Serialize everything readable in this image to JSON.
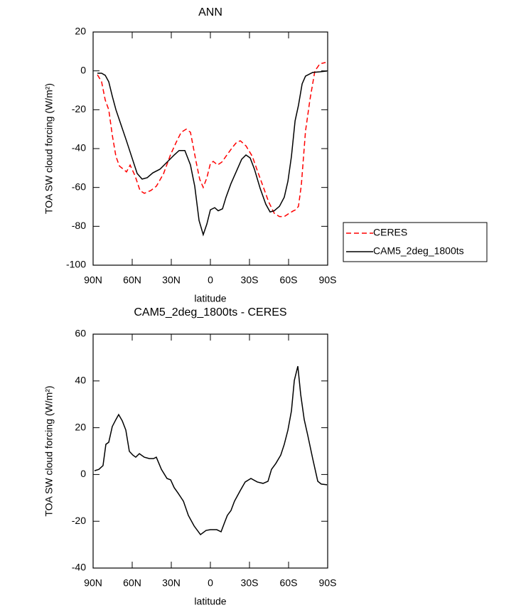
{
  "chart_data": [
    {
      "type": "line",
      "title": "ANN",
      "xlabel": "latitude",
      "ylabel": "TOA SW cloud forcing (W/m²)",
      "xlim": [
        90,
        -90
      ],
      "xticks": [
        {
          "value": 90,
          "label": "90N"
        },
        {
          "value": 60,
          "label": "60N"
        },
        {
          "value": 30,
          "label": "30N"
        },
        0,
        {
          "value": -30,
          "label": "30S"
        },
        {
          "value": -60,
          "label": "60S"
        },
        {
          "value": -90,
          "label": "90S"
        }
      ],
      "ylim": [
        -100,
        20
      ],
      "yticks": [
        -100,
        -80,
        -60,
        -40,
        -20,
        0,
        20
      ],
      "legend": "right",
      "series": [
        {
          "name": "CERES",
          "color": "#ff0000",
          "line_style": "dashed",
          "x": [
            86.7,
            83.5,
            80.7,
            78,
            75.3,
            72.5,
            69.8,
            66,
            64.4,
            61.6,
            57.8,
            54,
            50.7,
            45.8,
            41.5,
            36,
            30.5,
            26.2,
            22.4,
            18.5,
            15.3,
            10.9,
            8.2,
            5.5,
            2.7,
            0,
            -2.2,
            -5.5,
            -8.7,
            -13,
            -17,
            -20.2,
            -23,
            -27.3,
            -32.2,
            -36,
            -40.4,
            -44.7,
            -49,
            -53,
            -56.7,
            -60.5,
            -63.8,
            -65.5,
            -67.6,
            -69.8,
            -73,
            -76.4,
            -80.2,
            -84,
            -88.4
          ],
          "values": [
            -2,
            -5.6,
            -15,
            -20,
            -33,
            -44,
            -49,
            -51,
            -52,
            -48.5,
            -54,
            -61.6,
            -63,
            -61.6,
            -59.4,
            -53,
            -43,
            -36.7,
            -31.6,
            -30,
            -31.6,
            -47,
            -55.8,
            -60,
            -55,
            -47.7,
            -46.6,
            -48.4,
            -47,
            -43,
            -39.3,
            -36.7,
            -36,
            -38.6,
            -44,
            -51.3,
            -59.4,
            -67.4,
            -73.3,
            -75,
            -75,
            -73.3,
            -72,
            -71.5,
            -69.7,
            -58.7,
            -31,
            -14.8,
            0,
            3.6,
            4.3
          ]
        },
        {
          "name": "CAM5_2deg_1800ts",
          "color": "#000000",
          "line_style": "solid",
          "x": [
            86.7,
            83.5,
            80.7,
            78,
            75.3,
            72.5,
            68.7,
            64.4,
            60.5,
            56.2,
            52.4,
            48.5,
            44.2,
            38.7,
            33.3,
            27.8,
            24,
            19.6,
            15.3,
            12,
            8.7,
            5.5,
            2.7,
            0,
            -3.3,
            -6,
            -9.3,
            -12,
            -15.8,
            -20.2,
            -24,
            -27.3,
            -30.5,
            -33.8,
            -38.2,
            -42.5,
            -45.8,
            -49,
            -53,
            -56.7,
            -59.5,
            -62.2,
            -65,
            -67.6,
            -70.4,
            -73,
            -78.5,
            -84,
            -89.5
          ],
          "values": [
            -1.2,
            -1.2,
            -2.3,
            -5.6,
            -13,
            -20,
            -27.5,
            -36,
            -44,
            -52.8,
            -55.7,
            -55,
            -52.5,
            -50.6,
            -47,
            -43.3,
            -41,
            -41,
            -48.4,
            -59.4,
            -77,
            -84.3,
            -78.8,
            -71.5,
            -70.4,
            -72,
            -71,
            -65,
            -58,
            -51.3,
            -45.5,
            -43.3,
            -44.8,
            -50.6,
            -60.5,
            -68.6,
            -72.6,
            -72,
            -69.7,
            -65,
            -56.8,
            -44,
            -25.7,
            -17.7,
            -6.7,
            -2.7,
            -0.8,
            -0.5,
            -0.1
          ]
        }
      ]
    },
    {
      "type": "line",
      "title": "CAM5_2deg_1800ts - CERES",
      "xlabel": "latitude",
      "ylabel": "TOA SW cloud forcing (W/m²)",
      "xlim": [
        90,
        -90
      ],
      "xticks": [
        {
          "value": 90,
          "label": "90N"
        },
        {
          "value": 60,
          "label": "60N"
        },
        {
          "value": 30,
          "label": "30N"
        },
        0,
        {
          "value": -30,
          "label": "30S"
        },
        {
          "value": -60,
          "label": "60S"
        },
        {
          "value": -90,
          "label": "90S"
        }
      ],
      "ylim": [
        -40,
        60
      ],
      "yticks": [
        -40,
        -20,
        0,
        20,
        40,
        60
      ],
      "series": [
        {
          "color": "#000000",
          "line_style": "solid",
          "x": [
            88.9,
            85.6,
            82.4,
            80.2,
            78,
            75.3,
            72.5,
            70.4,
            67.6,
            64.9,
            62.2,
            59.5,
            57.3,
            54.5,
            50.7,
            46.9,
            43.6,
            41.5,
            37.6,
            33.3,
            30.5,
            27.8,
            25,
            20.7,
            16.9,
            12.5,
            7.6,
            3.3,
            0,
            -4.9,
            -8.2,
            -10.9,
            -13,
            -15.8,
            -18.5,
            -23,
            -26.7,
            -31.1,
            -36,
            -40.4,
            -44.2,
            -46.9,
            -50.2,
            -54,
            -56.7,
            -59.5,
            -62.2,
            -64.4,
            -67.1,
            -69.3,
            -72,
            -74.7,
            -78.5,
            -82.4,
            -85.1,
            -89.5
          ],
          "values": [
            1.6,
            2.2,
            3.8,
            12.9,
            13.8,
            20.5,
            23.5,
            25.6,
            22.9,
            19,
            9.9,
            8.3,
            7.4,
            8.9,
            7.4,
            6.8,
            6.8,
            7.4,
            2.2,
            -1.7,
            -2.3,
            -5.6,
            -7.8,
            -11.4,
            -17.5,
            -22,
            -25.7,
            -23.9,
            -23.6,
            -23.6,
            -24.5,
            -20.5,
            -17.5,
            -15.4,
            -11.4,
            -6.8,
            -3.2,
            -1.7,
            -3.2,
            -3.8,
            -2.9,
            2.2,
            4.7,
            8.3,
            12.9,
            19,
            27.2,
            40.2,
            46.3,
            34.2,
            23.5,
            16.8,
            6.8,
            -2.9,
            -4.1,
            -4.4
          ]
        }
      ]
    }
  ]
}
